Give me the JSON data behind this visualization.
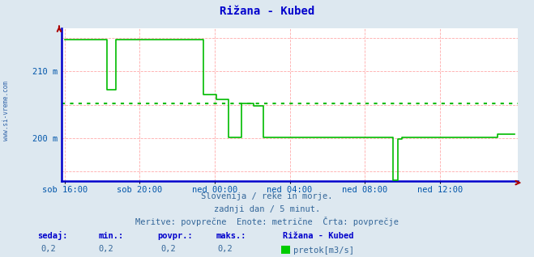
{
  "title": "Rižana - Kubed",
  "bg_color": "#dde8f0",
  "plot_bg_color": "#ffffff",
  "title_color": "#0000cc",
  "axis_label_color": "#0055aa",
  "text_color": "#336699",
  "grid_color": "#ffaaaa",
  "avg_line_color": "#00bb00",
  "line_color": "#00bb00",
  "border_color": "#0000cc",
  "x_labels": [
    "sob 16:00",
    "sob 20:00",
    "ned 00:00",
    "ned 04:00",
    "ned 08:00",
    "ned 12:00"
  ],
  "x_ticks": [
    0,
    48,
    96,
    144,
    192,
    240
  ],
  "ylim": [
    193.5,
    216.5
  ],
  "xlim": [
    -2,
    290
  ],
  "avg_y": 205.2,
  "arrow_color": "#aa0000",
  "bottom_text1": "Slovenija / reke in morje.",
  "bottom_text2": "zadnji dan / 5 minut.",
  "bottom_text3": "Meritve: povprečne  Enote: metrične  Črta: povprečje",
  "legend_title": "Rižana - Kubed",
  "stat_labels": [
    "sedaj:",
    "min.:",
    "povpr.:",
    "maks.:"
  ],
  "stat_values": [
    "0,2",
    "0,2",
    "0,2",
    "0,2"
  ],
  "legend_entry": "pretok[m3/s]",
  "watermark": "www.si-vreme.com",
  "flow_x": [
    0,
    27,
    27,
    33,
    33,
    38,
    38,
    89,
    89,
    97,
    97,
    105,
    105,
    113,
    113,
    121,
    121,
    127,
    127,
    132,
    132,
    200,
    200,
    210,
    210,
    213,
    213,
    216,
    216,
    277,
    277,
    288
  ],
  "flow_y": [
    214.8,
    214.8,
    207.2,
    207.2,
    214.8,
    214.8,
    214.8,
    214.8,
    206.5,
    206.5,
    205.8,
    205.8,
    200.1,
    200.1,
    205.2,
    205.2,
    204.8,
    204.8,
    200.1,
    200.1,
    200.1,
    200.1,
    200.1,
    200.1,
    193.6,
    193.6,
    199.8,
    199.8,
    200.1,
    200.1,
    200.6,
    200.6
  ]
}
